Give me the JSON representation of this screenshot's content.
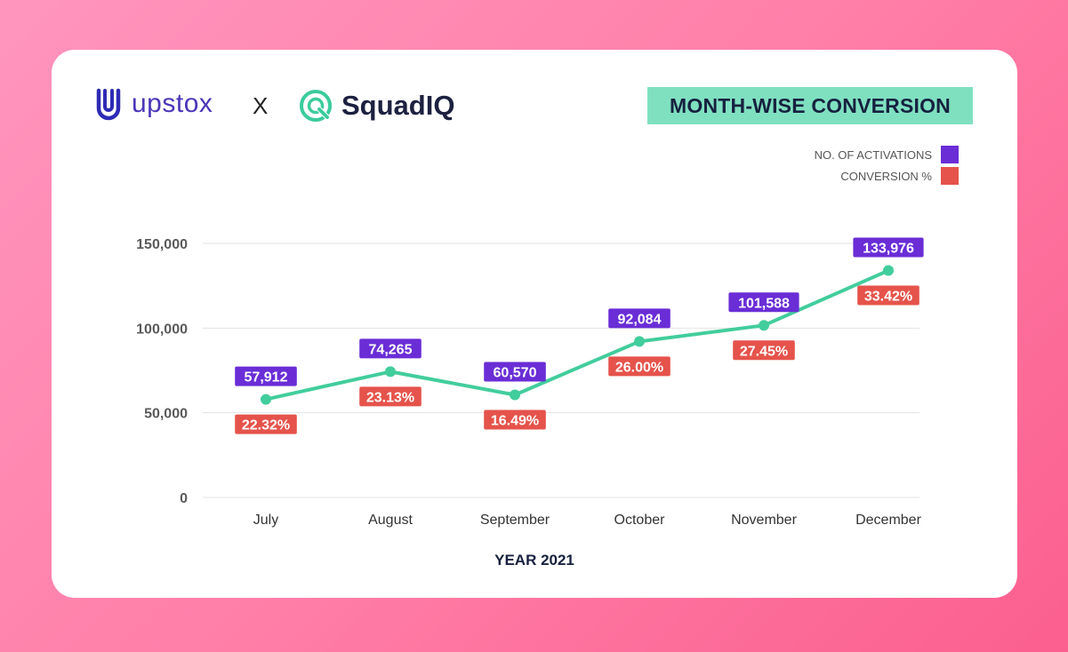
{
  "brands": {
    "upstox": {
      "name": "upstox",
      "color": "#2e2bb5",
      "icon": "upstox-u-logo-icon"
    },
    "separator": "X",
    "squadiq": {
      "name": "SquadIQ",
      "color": "#3bcb9c",
      "icon": "squadiq-target-logo-icon"
    }
  },
  "title": "MONTH-WISE CONVERSION",
  "legend": [
    {
      "label": "NO. OF ACTIVATIONS",
      "color": "#6a2dd6"
    },
    {
      "label": "CONVERSION %",
      "color": "#e5534b"
    }
  ],
  "chart_data": {
    "type": "line",
    "title": "MONTH-WISE CONVERSION",
    "xlabel": "YEAR 2021",
    "ylabel": "",
    "categories": [
      "July",
      "August",
      "September",
      "October",
      "November",
      "December"
    ],
    "ylim": [
      0,
      150000
    ],
    "yticks": [
      {
        "value": 0,
        "label": "0"
      },
      {
        "value": 50000,
        "label": "50,000"
      },
      {
        "value": 100000,
        "label": "100,000"
      },
      {
        "value": 150000,
        "label": "150,000"
      }
    ],
    "grid": true,
    "series": [
      {
        "name": "NO. OF ACTIVATIONS",
        "values": [
          57912,
          74265,
          60570,
          92084,
          101588,
          133976
        ],
        "labels": [
          "57,912",
          "74,265",
          "60,570",
          "92,084",
          "101,588",
          "133,976"
        ],
        "color": "#42cd9c",
        "label_color": "#6a2dd6"
      },
      {
        "name": "CONVERSION %",
        "values": [
          22.32,
          23.13,
          16.49,
          26.0,
          27.45,
          33.42
        ],
        "labels": [
          "22.32%",
          "23.13%",
          "16.49%",
          "26.00%",
          "27.45%",
          "33.42%"
        ],
        "label_color": "#e5534b"
      }
    ]
  }
}
